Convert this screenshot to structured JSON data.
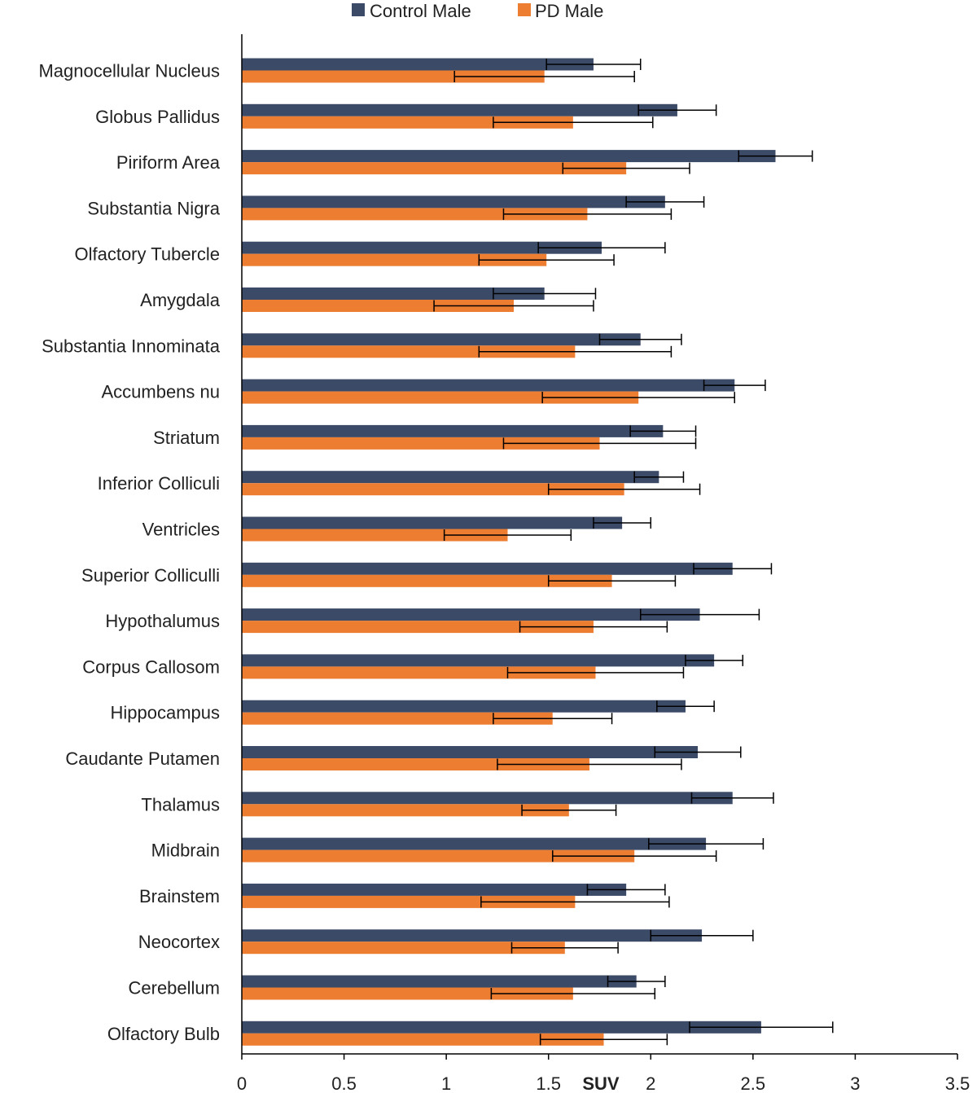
{
  "chart_data": {
    "type": "bar",
    "orientation": "horizontal",
    "title": "",
    "xlabel": "SUV",
    "ylabel": "",
    "xlim": [
      0,
      3.5
    ],
    "xticks": [
      "0",
      "0.5",
      "1",
      "1.5",
      "2",
      "2.5",
      "3",
      "3.5"
    ],
    "xtick_values": [
      0,
      0.5,
      1,
      1.5,
      2,
      2.5,
      3,
      3.5
    ],
    "grid": false,
    "legend_position": "top-center",
    "categories": [
      "Magnocellular Nucleus",
      "Globus Pallidus",
      "Piriform Area",
      "Substantia Nigra",
      "Olfactory Tubercle",
      "Amygdala",
      "Substantia Innominata",
      "Accumbens nu",
      "Striatum",
      "Inferior Colliculi",
      "Ventricles",
      "Superior Colliculli",
      "Hypothalumus",
      "Corpus Callosom",
      "Hippocampus",
      "Caudante Putamen",
      "Thalamus",
      "Midbrain",
      "Brainstem",
      "Neocortex",
      "Cerebellum",
      "Olfactory Bulb"
    ],
    "series": [
      {
        "name": "Control Male",
        "color": "#3b4a66",
        "values": [
          1.72,
          2.13,
          2.61,
          2.07,
          1.76,
          1.48,
          1.95,
          2.41,
          2.06,
          2.04,
          1.86,
          2.4,
          2.24,
          2.31,
          2.17,
          2.23,
          2.4,
          2.27,
          1.88,
          2.25,
          1.93,
          2.54
        ],
        "errors": [
          0.23,
          0.19,
          0.18,
          0.19,
          0.31,
          0.25,
          0.2,
          0.15,
          0.16,
          0.12,
          0.14,
          0.19,
          0.29,
          0.14,
          0.14,
          0.21,
          0.2,
          0.28,
          0.19,
          0.25,
          0.14,
          0.35
        ]
      },
      {
        "name": "PD Male",
        "color": "#ed7d31",
        "values": [
          1.48,
          1.62,
          1.88,
          1.69,
          1.49,
          1.33,
          1.63,
          1.94,
          1.75,
          1.87,
          1.3,
          1.81,
          1.72,
          1.73,
          1.52,
          1.7,
          1.6,
          1.92,
          1.63,
          1.58,
          1.62,
          1.77
        ],
        "errors": [
          0.44,
          0.39,
          0.31,
          0.41,
          0.33,
          0.39,
          0.47,
          0.47,
          0.47,
          0.37,
          0.31,
          0.31,
          0.36,
          0.43,
          0.29,
          0.45,
          0.23,
          0.4,
          0.46,
          0.26,
          0.4,
          0.31
        ]
      }
    ]
  }
}
